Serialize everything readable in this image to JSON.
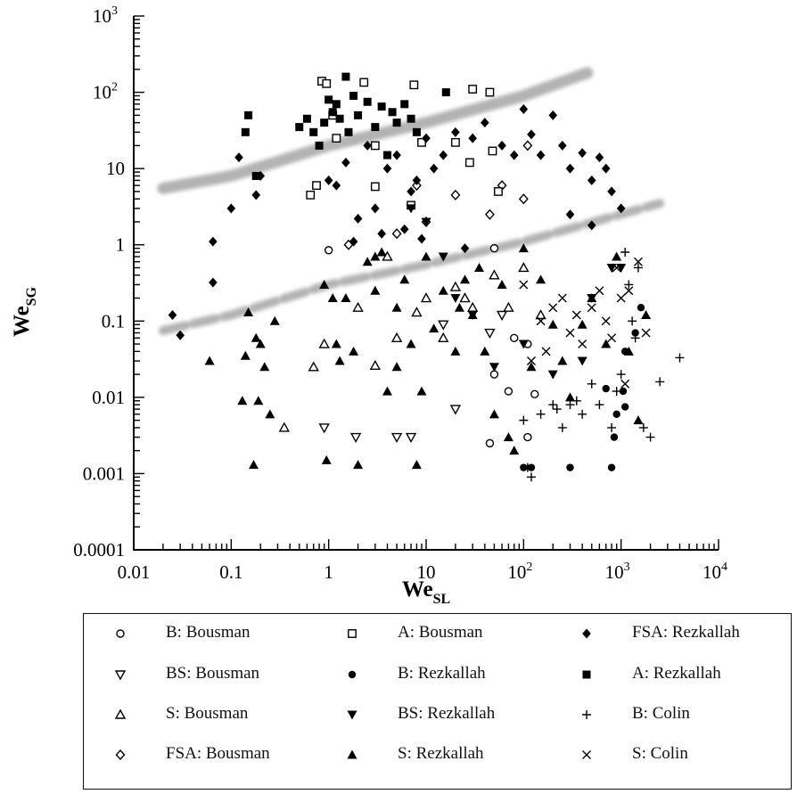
{
  "chart_data": {
    "type": "scatter",
    "x_scale": "log",
    "y_scale": "log",
    "xlim": [
      0.01,
      10000
    ],
    "ylim": [
      0.0001,
      1000
    ],
    "grid": false,
    "xlabel": "We",
    "xlabel_sub": "SL",
    "ylabel": "We",
    "ylabel_sub": "SG",
    "x_ticks": [
      {
        "value": 0.01,
        "base": "0.01",
        "sup": ""
      },
      {
        "value": 0.1,
        "base": "0.1",
        "sup": ""
      },
      {
        "value": 1,
        "base": "1",
        "sup": ""
      },
      {
        "value": 10,
        "base": "10",
        "sup": ""
      },
      {
        "value": 100,
        "base": "10",
        "sup": "2"
      },
      {
        "value": 1000,
        "base": "10",
        "sup": "3"
      },
      {
        "value": 10000,
        "base": "10",
        "sup": "4"
      }
    ],
    "y_ticks": [
      {
        "value": 0.0001,
        "base": "0.0001",
        "sup": ""
      },
      {
        "value": 0.001,
        "base": "0.001",
        "sup": ""
      },
      {
        "value": 0.01,
        "base": "0.01",
        "sup": ""
      },
      {
        "value": 0.1,
        "base": "0.1",
        "sup": ""
      },
      {
        "value": 1,
        "base": "1",
        "sup": ""
      },
      {
        "value": 10,
        "base": "10",
        "sup": ""
      },
      {
        "value": 100,
        "base": "10",
        "sup": "2"
      },
      {
        "value": 1000,
        "base": "10",
        "sup": "3"
      }
    ],
    "transition_bands": [
      {
        "x": [
          0.02,
          0.1,
          1,
          10,
          100,
          450
        ],
        "y": [
          5.5,
          8,
          20,
          40,
          90,
          180
        ]
      },
      {
        "x": [
          0.02,
          0.1,
          1,
          10,
          100,
          2500
        ],
        "y": [
          0.075,
          0.12,
          0.3,
          0.55,
          1.1,
          3.5
        ]
      }
    ],
    "legend_position": "bottom",
    "series": [
      {
        "name": "B: Bousman",
        "marker": "circle-open",
        "points": [
          [
            1,
            0.85
          ],
          [
            45,
            0.0025
          ],
          [
            50,
            0.02
          ],
          [
            70,
            0.012
          ],
          [
            110,
            0.05
          ],
          [
            130,
            0.011
          ],
          [
            110,
            0.003
          ],
          [
            50,
            0.9
          ],
          [
            80,
            0.06
          ]
        ]
      },
      {
        "name": "BS: Bousman",
        "marker": "triangle-down-open",
        "points": [
          [
            0.9,
            0.004
          ],
          [
            1.9,
            0.003
          ],
          [
            5,
            0.003
          ],
          [
            7,
            0.003
          ],
          [
            20,
            0.007
          ],
          [
            45,
            0.07
          ],
          [
            60,
            0.12
          ],
          [
            15,
            0.09
          ]
        ]
      },
      {
        "name": "S: Bousman",
        "marker": "triangle-up-open",
        "points": [
          [
            0.35,
            0.004
          ],
          [
            0.7,
            0.025
          ],
          [
            0.9,
            0.05
          ],
          [
            2,
            0.15
          ],
          [
            3,
            0.026
          ],
          [
            5,
            0.06
          ],
          [
            8,
            0.13
          ],
          [
            10,
            0.2
          ],
          [
            15,
            0.06
          ],
          [
            20,
            0.28
          ],
          [
            30,
            0.15
          ],
          [
            50,
            0.4
          ],
          [
            70,
            0.15
          ],
          [
            100,
            0.5
          ],
          [
            150,
            0.12
          ],
          [
            4,
            0.7
          ],
          [
            25,
            0.2
          ]
        ]
      },
      {
        "name": "FSA: Bousman",
        "marker": "diamond-open",
        "points": [
          [
            1.6,
            1
          ],
          [
            5,
            1.4
          ],
          [
            10,
            2
          ],
          [
            20,
            4.5
          ],
          [
            60,
            6
          ],
          [
            100,
            4
          ],
          [
            110,
            20
          ],
          [
            45,
            2.5
          ],
          [
            8,
            6
          ]
        ]
      },
      {
        "name": "A: Bousman",
        "marker": "square-open",
        "points": [
          [
            0.85,
            140
          ],
          [
            0.95,
            130
          ],
          [
            1.1,
            50
          ],
          [
            2.3,
            135
          ],
          [
            7.5,
            125
          ],
          [
            30,
            110
          ],
          [
            45,
            100
          ],
          [
            0.65,
            4.5
          ],
          [
            0.75,
            6
          ],
          [
            3,
            5.8
          ],
          [
            7,
            3.3
          ],
          [
            9,
            22
          ],
          [
            20,
            22
          ],
          [
            28,
            12
          ],
          [
            48,
            17
          ],
          [
            55,
            5
          ],
          [
            3,
            20
          ],
          [
            1.2,
            25
          ]
        ]
      },
      {
        "name": "B: Rezkallah",
        "marker": "circle-filled",
        "points": [
          [
            100,
            0.0012
          ],
          [
            120,
            0.0012
          ],
          [
            300,
            0.0012
          ],
          [
            800,
            0.0012
          ],
          [
            850,
            0.003
          ],
          [
            1100,
            0.0075
          ],
          [
            1050,
            0.012
          ],
          [
            1100,
            0.04
          ],
          [
            1400,
            0.07
          ],
          [
            1600,
            0.15
          ],
          [
            700,
            0.013
          ],
          [
            900,
            0.006
          ]
        ]
      },
      {
        "name": "BS: Rezkallah",
        "marker": "triangle-down-filled",
        "points": [
          [
            7,
            3
          ],
          [
            10,
            2
          ],
          [
            20,
            0.2
          ],
          [
            30,
            0.12
          ],
          [
            50,
            0.025
          ],
          [
            100,
            0.05
          ],
          [
            200,
            0.02
          ],
          [
            500,
            0.2
          ],
          [
            800,
            0.5
          ],
          [
            1000,
            0.5
          ],
          [
            15,
            0.7
          ],
          [
            400,
            0.03
          ]
        ]
      },
      {
        "name": "S: Rezkallah",
        "marker": "triangle-up-filled",
        "points": [
          [
            0.06,
            0.03
          ],
          [
            0.13,
            0.009
          ],
          [
            0.14,
            0.035
          ],
          [
            0.15,
            0.13
          ],
          [
            0.17,
            0.0013
          ],
          [
            0.18,
            0.06
          ],
          [
            0.19,
            0.009
          ],
          [
            0.2,
            0.05
          ],
          [
            0.22,
            0.025
          ],
          [
            0.25,
            0.006
          ],
          [
            0.28,
            0.1
          ],
          [
            0.9,
            0.3
          ],
          [
            0.95,
            0.0015
          ],
          [
            1.2,
            0.05
          ],
          [
            1.5,
            0.2
          ],
          [
            1.8,
            0.04
          ],
          [
            2,
            0.0013
          ],
          [
            2.5,
            0.6
          ],
          [
            3,
            0.25
          ],
          [
            3.5,
            0.8
          ],
          [
            4,
            0.012
          ],
          [
            5,
            0.15
          ],
          [
            6,
            0.35
          ],
          [
            7,
            0.05
          ],
          [
            8,
            0.0013
          ],
          [
            9,
            0.012
          ],
          [
            10,
            0.7
          ],
          [
            12,
            0.08
          ],
          [
            15,
            0.25
          ],
          [
            20,
            0.04
          ],
          [
            25,
            0.35
          ],
          [
            30,
            0.12
          ],
          [
            40,
            0.04
          ],
          [
            50,
            0.006
          ],
          [
            60,
            0.3
          ],
          [
            70,
            0.003
          ],
          [
            80,
            0.002
          ],
          [
            100,
            0.9
          ],
          [
            120,
            0.025
          ],
          [
            150,
            0.35
          ],
          [
            200,
            0.09
          ],
          [
            250,
            0.03
          ],
          [
            300,
            0.01
          ],
          [
            400,
            0.09
          ],
          [
            500,
            0.2
          ],
          [
            700,
            0.05
          ],
          [
            900,
            0.7
          ],
          [
            1200,
            0.04
          ],
          [
            1500,
            0.005
          ],
          [
            1800,
            0.12
          ],
          [
            3,
            0.7
          ],
          [
            1.1,
            0.2
          ],
          [
            1.3,
            0.03
          ],
          [
            5,
            0.025
          ],
          [
            22,
            0.15
          ],
          [
            35,
            0.5
          ]
        ]
      },
      {
        "name": "FSA: Rezkallah",
        "marker": "diamond-filled",
        "points": [
          [
            0.025,
            0.12
          ],
          [
            0.03,
            0.065
          ],
          [
            0.065,
            1.1
          ],
          [
            0.065,
            0.32
          ],
          [
            0.1,
            3
          ],
          [
            0.12,
            14
          ],
          [
            0.18,
            4.5
          ],
          [
            0.2,
            8
          ],
          [
            1,
            7
          ],
          [
            1.2,
            6
          ],
          [
            1.5,
            12
          ],
          [
            2,
            2.2
          ],
          [
            2.5,
            20
          ],
          [
            3,
            3
          ],
          [
            4,
            10
          ],
          [
            5,
            15
          ],
          [
            7,
            5
          ],
          [
            8,
            7
          ],
          [
            10,
            25
          ],
          [
            12,
            10
          ],
          [
            15,
            15
          ],
          [
            20,
            30
          ],
          [
            30,
            25
          ],
          [
            40,
            40
          ],
          [
            60,
            20
          ],
          [
            80,
            15
          ],
          [
            100,
            60
          ],
          [
            120,
            28
          ],
          [
            150,
            15
          ],
          [
            200,
            50
          ],
          [
            250,
            20
          ],
          [
            300,
            10
          ],
          [
            400,
            16
          ],
          [
            500,
            7
          ],
          [
            600,
            14
          ],
          [
            700,
            10
          ],
          [
            800,
            5
          ],
          [
            1000,
            3
          ],
          [
            1.8,
            1.1
          ],
          [
            3.5,
            1.4
          ],
          [
            6,
            1.6
          ],
          [
            9,
            1.2
          ],
          [
            25,
            0.9
          ],
          [
            300,
            2.5
          ],
          [
            500,
            1.8
          ]
        ]
      },
      {
        "name": "A: Rezkallah",
        "marker": "square-filled",
        "points": [
          [
            0.14,
            30
          ],
          [
            0.15,
            50
          ],
          [
            0.18,
            8
          ],
          [
            0.5,
            35
          ],
          [
            0.6,
            45
          ],
          [
            0.7,
            30
          ],
          [
            0.8,
            20
          ],
          [
            0.9,
            40
          ],
          [
            1,
            80
          ],
          [
            1.1,
            55
          ],
          [
            1.2,
            70
          ],
          [
            1.3,
            45
          ],
          [
            1.5,
            160
          ],
          [
            1.6,
            30
          ],
          [
            1.8,
            90
          ],
          [
            2,
            50
          ],
          [
            2.5,
            75
          ],
          [
            3,
            35
          ],
          [
            3.5,
            65
          ],
          [
            4,
            15
          ],
          [
            4.5,
            55
          ],
          [
            5,
            40
          ],
          [
            6,
            70
          ],
          [
            7,
            45
          ],
          [
            8,
            30
          ],
          [
            16,
            100
          ]
        ]
      },
      {
        "name": "B: Colin",
        "marker": "plus",
        "points": [
          [
            100,
            0.005
          ],
          [
            110,
            0.0012
          ],
          [
            120,
            0.0009
          ],
          [
            150,
            0.006
          ],
          [
            200,
            0.008
          ],
          [
            250,
            0.004
          ],
          [
            300,
            0.008
          ],
          [
            350,
            0.009
          ],
          [
            400,
            0.006
          ],
          [
            500,
            0.015
          ],
          [
            600,
            0.008
          ],
          [
            800,
            0.004
          ],
          [
            900,
            0.012
          ],
          [
            1000,
            0.02
          ],
          [
            1200,
            0.3
          ],
          [
            1500,
            0.5
          ],
          [
            1700,
            0.004
          ],
          [
            2000,
            0.003
          ],
          [
            2500,
            0.016
          ],
          [
            4000,
            0.033
          ],
          [
            1100,
            0.8
          ],
          [
            1300,
            0.1
          ],
          [
            1400,
            0.06
          ],
          [
            220,
            0.007
          ]
        ]
      },
      {
        "name": "S: Colin",
        "marker": "cross",
        "points": [
          [
            100,
            0.3
          ],
          [
            120,
            0.03
          ],
          [
            150,
            0.1
          ],
          [
            200,
            0.15
          ],
          [
            250,
            0.2
          ],
          [
            300,
            0.07
          ],
          [
            400,
            0.05
          ],
          [
            500,
            0.15
          ],
          [
            600,
            0.25
          ],
          [
            700,
            0.1
          ],
          [
            800,
            0.06
          ],
          [
            900,
            0.5
          ],
          [
            1000,
            0.2
          ],
          [
            1100,
            0.015
          ],
          [
            1200,
            0.25
          ],
          [
            1500,
            0.6
          ],
          [
            1800,
            0.07
          ],
          [
            170,
            0.04
          ],
          [
            350,
            0.12
          ]
        ]
      }
    ]
  }
}
